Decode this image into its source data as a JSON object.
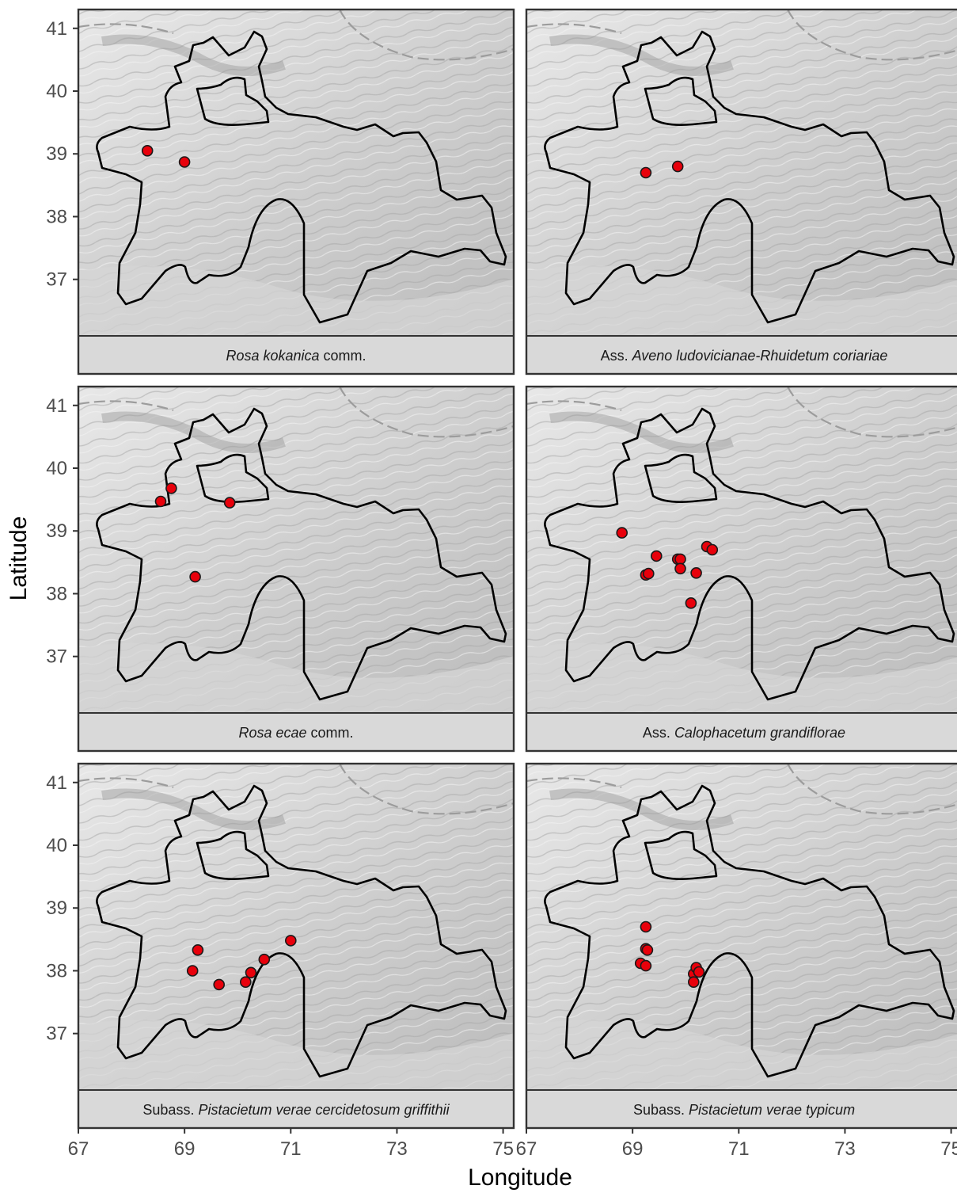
{
  "figure": {
    "xlabel": "Longitude",
    "ylabel": "Latitude",
    "x_ticks": [
      "67",
      "69",
      "71",
      "73",
      "75"
    ],
    "y_ticks": [
      "37",
      "38",
      "39",
      "40",
      "41"
    ],
    "point_color": "#e8000b",
    "point_stroke": "#1a1a1a",
    "border_color": "#000000",
    "strip_fill": "#d9d9d9"
  },
  "chart_data": {
    "type": "scatter",
    "description_free": true,
    "xlim": [
      67,
      75.2
    ],
    "ylim": [
      36.1,
      41.3
    ],
    "panels": [
      {
        "label_parts": [
          {
            "text": "Rosa kokanica",
            "italic": true
          },
          {
            "text": " comm.",
            "italic": false
          }
        ],
        "points": [
          [
            68.3,
            39.05
          ],
          [
            69.0,
            38.87
          ]
        ]
      },
      {
        "label_parts": [
          {
            "text": "Ass. ",
            "italic": false
          },
          {
            "text": "Aveno ludovicianae-Rhuidetum coriariae",
            "italic": true
          }
        ],
        "points": [
          [
            69.25,
            38.7
          ],
          [
            69.85,
            38.8
          ]
        ]
      },
      {
        "label_parts": [
          {
            "text": "Rosa ecae",
            "italic": true
          },
          {
            "text": " comm.",
            "italic": false
          }
        ],
        "points": [
          [
            68.55,
            39.47
          ],
          [
            68.75,
            39.68
          ],
          [
            69.85,
            39.45
          ],
          [
            69.2,
            38.27
          ]
        ]
      },
      {
        "label_parts": [
          {
            "text": "Ass. ",
            "italic": false
          },
          {
            "text": "Calophacetum grandiflorae",
            "italic": true
          }
        ],
        "points": [
          [
            68.8,
            38.97
          ],
          [
            69.45,
            38.6
          ],
          [
            69.85,
            38.55
          ],
          [
            69.9,
            38.55
          ],
          [
            69.9,
            38.4
          ],
          [
            70.4,
            38.75
          ],
          [
            70.5,
            38.7
          ],
          [
            69.25,
            38.3
          ],
          [
            69.3,
            38.32
          ],
          [
            70.2,
            38.33
          ],
          [
            70.1,
            37.85
          ]
        ]
      },
      {
        "label_parts": [
          {
            "text": "Subass. ",
            "italic": false
          },
          {
            "text": "Pistacietum verae cercidetosum griffithii",
            "italic": true
          }
        ],
        "points": [
          [
            69.25,
            38.33
          ],
          [
            69.15,
            38.0
          ],
          [
            69.65,
            37.78
          ],
          [
            70.15,
            37.82
          ],
          [
            70.25,
            37.97
          ],
          [
            70.5,
            38.18
          ],
          [
            71.0,
            38.48
          ]
        ]
      },
      {
        "label_parts": [
          {
            "text": "Subass. ",
            "italic": false
          },
          {
            "text": "Pistacietum verae typicum",
            "italic": true
          }
        ],
        "points": [
          [
            69.25,
            38.7
          ],
          [
            69.25,
            38.35
          ],
          [
            69.28,
            38.33
          ],
          [
            69.15,
            38.12
          ],
          [
            69.25,
            38.08
          ],
          [
            70.15,
            37.95
          ],
          [
            70.2,
            38.05
          ],
          [
            70.25,
            37.98
          ],
          [
            70.15,
            37.82
          ]
        ]
      }
    ]
  }
}
